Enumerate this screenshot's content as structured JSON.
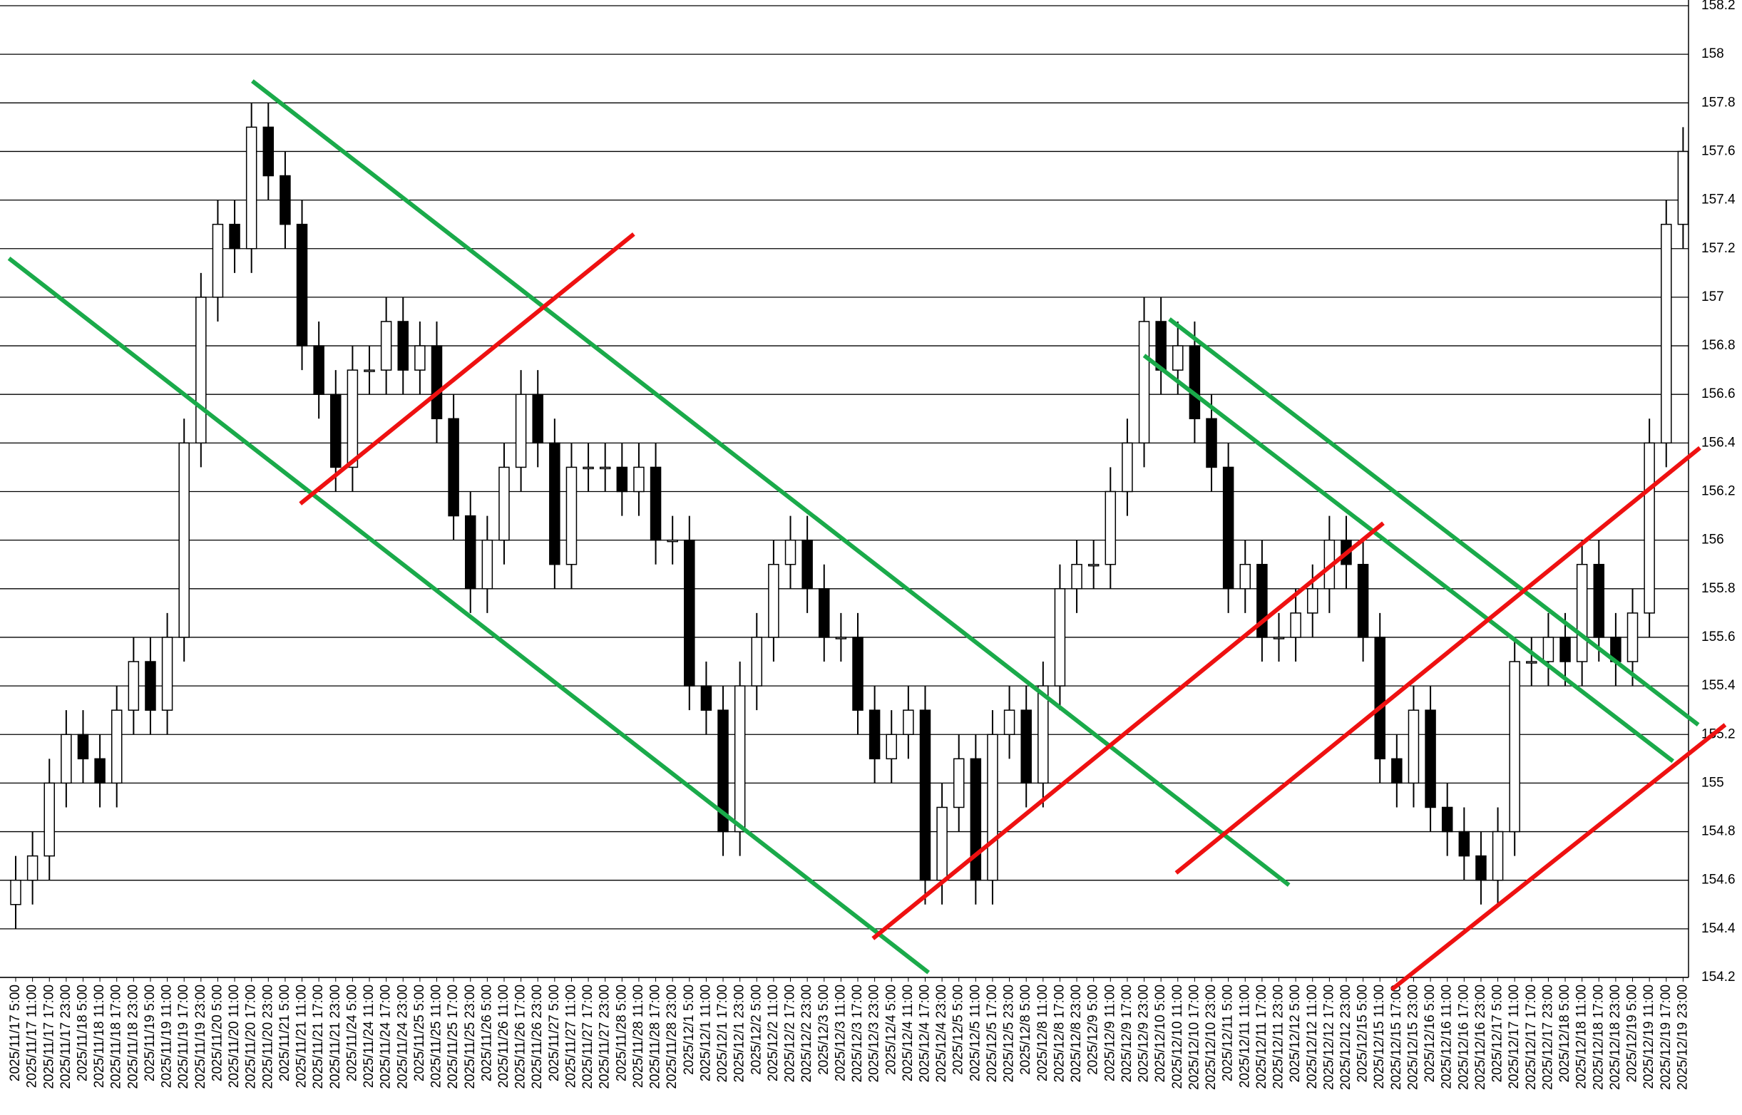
{
  "chart_data": {
    "type": "candlestick",
    "categories": [
      "2025/11/17 5:00",
      "2025/11/17 11:00",
      "2025/11/17 17:00",
      "2025/11/17 23:00",
      "2025/11/18 5:00",
      "2025/11/18 11:00",
      "2025/11/18 17:00",
      "2025/11/18 23:00",
      "2025/11/19 5:00",
      "2025/11/19 11:00",
      "2025/11/19 17:00",
      "2025/11/19 23:00",
      "2025/11/20 5:00",
      "2025/11/20 11:00",
      "2025/11/20 17:00",
      "2025/11/20 23:00",
      "2025/11/21 5:00",
      "2025/11/21 11:00",
      "2025/11/21 17:00",
      "2025/11/21 23:00",
      "2025/11/24 5:00",
      "2025/11/24 11:00",
      "2025/11/24 17:00",
      "2025/11/24 23:00",
      "2025/11/25 5:00",
      "2025/11/25 11:00",
      "2025/11/25 17:00",
      "2025/11/25 23:00",
      "2025/11/26 5:00",
      "2025/11/26 11:00",
      "2025/11/26 17:00",
      "2025/11/26 23:00",
      "2025/11/27 5:00",
      "2025/11/27 11:00",
      "2025/11/27 17:00",
      "2025/11/27 23:00",
      "2025/11/28 5:00",
      "2025/11/28 11:00",
      "2025/11/28 17:00",
      "2025/11/28 23:00",
      "2025/12/1 5:00",
      "2025/12/1 11:00",
      "2025/12/1 17:00",
      "2025/12/1 23:00",
      "2025/12/2 5:00",
      "2025/12/2 11:00",
      "2025/12/2 17:00",
      "2025/12/2 23:00",
      "2025/12/3 5:00",
      "2025/12/3 11:00",
      "2025/12/3 17:00",
      "2025/12/3 23:00",
      "2025/12/4 5:00",
      "2025/12/4 11:00",
      "2025/12/4 17:00",
      "2025/12/4 23:00",
      "2025/12/5 5:00",
      "2025/12/5 11:00",
      "2025/12/5 17:00",
      "2025/12/5 23:00",
      "2025/12/8 5:00",
      "2025/12/8 11:00",
      "2025/12/8 17:00",
      "2025/12/8 23:00",
      "2025/12/9 5:00",
      "2025/12/9 11:00",
      "2025/12/9 17:00",
      "2025/12/9 23:00",
      "2025/12/10 5:00",
      "2025/12/10 11:00",
      "2025/12/10 17:00",
      "2025/12/10 23:00",
      "2025/12/11 5:00",
      "2025/12/11 11:00",
      "2025/12/11 17:00",
      "2025/12/11 23:00",
      "2025/12/12 5:00",
      "2025/12/12 11:00",
      "2025/12/12 17:00",
      "2025/12/12 23:00",
      "2025/12/15 5:00",
      "2025/12/15 11:00",
      "2025/12/15 17:00",
      "2025/12/15 23:00",
      "2025/12/16 5:00",
      "2025/12/16 11:00",
      "2025/12/16 17:00",
      "2025/12/16 23:00",
      "2025/12/17 5:00",
      "2025/12/17 11:00",
      "2025/12/17 17:00",
      "2025/12/17 23:00",
      "2025/12/18 5:00",
      "2025/12/18 11:00",
      "2025/12/18 17:00",
      "2025/12/18 23:00",
      "2025/12/19 5:00",
      "2025/12/19 11:00",
      "2025/12/19 17:00",
      "2025/12/19 23:00"
    ],
    "open": [
      154.5,
      154.6,
      154.7,
      155.0,
      155.2,
      155.1,
      155.0,
      155.3,
      155.5,
      155.3,
      155.6,
      156.4,
      157.0,
      157.3,
      157.2,
      157.7,
      157.5,
      157.3,
      156.8,
      156.6,
      156.3,
      156.7,
      156.7,
      156.9,
      156.7,
      156.8,
      156.5,
      156.1,
      155.8,
      156.0,
      156.3,
      156.6,
      156.4,
      155.9,
      156.3,
      156.3,
      156.3,
      156.2,
      156.3,
      156.0,
      156.0,
      155.4,
      155.3,
      154.8,
      155.4,
      155.6,
      155.9,
      156.0,
      155.8,
      155.6,
      155.6,
      155.3,
      155.1,
      155.2,
      155.3,
      154.6,
      154.9,
      155.1,
      154.6,
      155.2,
      155.3,
      155.0,
      155.4,
      155.8,
      155.9,
      155.9,
      156.2,
      156.4,
      156.9,
      156.7,
      156.8,
      156.5,
      156.3,
      155.8,
      155.9,
      155.6,
      155.6,
      155.7,
      155.8,
      156.0,
      155.9,
      155.6,
      155.1,
      155.0,
      155.3,
      154.9,
      154.8,
      154.7,
      154.6,
      154.8,
      155.5,
      155.5,
      155.6,
      155.5,
      155.9,
      155.6,
      155.5,
      155.7,
      156.4,
      157.3
    ],
    "high": [
      154.7,
      154.8,
      155.1,
      155.3,
      155.3,
      155.2,
      155.4,
      155.6,
      155.6,
      155.7,
      156.5,
      157.1,
      157.4,
      157.4,
      157.8,
      157.8,
      157.6,
      157.4,
      156.9,
      156.7,
      156.8,
      156.8,
      157.0,
      157.0,
      156.9,
      156.9,
      156.6,
      156.2,
      156.1,
      156.4,
      156.7,
      156.7,
      156.5,
      156.4,
      156.4,
      156.4,
      156.4,
      156.4,
      156.4,
      156.1,
      156.1,
      155.5,
      155.4,
      155.5,
      155.7,
      156.0,
      156.1,
      156.1,
      155.9,
      155.7,
      155.7,
      155.4,
      155.3,
      155.4,
      155.4,
      155.0,
      155.2,
      155.2,
      155.3,
      155.4,
      155.4,
      155.5,
      155.9,
      156.0,
      156.0,
      156.3,
      156.5,
      157.0,
      157.0,
      156.9,
      156.9,
      156.6,
      156.4,
      156.0,
      156.0,
      155.7,
      155.8,
      155.9,
      156.1,
      156.1,
      156.0,
      155.7,
      155.2,
      155.4,
      155.4,
      155.0,
      154.9,
      154.8,
      154.9,
      155.6,
      155.6,
      155.7,
      155.7,
      156.0,
      156.0,
      155.7,
      155.8,
      156.5,
      157.4,
      157.7
    ],
    "low": [
      154.4,
      154.5,
      154.6,
      154.9,
      155.0,
      154.9,
      154.9,
      155.2,
      155.2,
      155.2,
      155.5,
      156.3,
      156.9,
      157.1,
      157.1,
      157.4,
      157.2,
      156.7,
      156.5,
      156.2,
      156.2,
      156.6,
      156.6,
      156.6,
      156.6,
      156.4,
      156.0,
      155.7,
      155.7,
      155.9,
      156.2,
      156.3,
      155.8,
      155.8,
      156.2,
      156.2,
      156.1,
      156.1,
      155.9,
      155.9,
      155.3,
      155.2,
      154.7,
      154.7,
      155.3,
      155.5,
      155.8,
      155.7,
      155.5,
      155.5,
      155.2,
      155.0,
      155.0,
      155.1,
      154.5,
      154.5,
      154.8,
      154.5,
      154.5,
      155.1,
      154.9,
      154.9,
      155.3,
      155.7,
      155.8,
      155.8,
      156.1,
      156.3,
      156.6,
      156.6,
      156.4,
      156.2,
      155.7,
      155.7,
      155.5,
      155.5,
      155.5,
      155.6,
      155.7,
      155.8,
      155.5,
      155.0,
      154.9,
      154.9,
      154.8,
      154.7,
      154.6,
      154.5,
      154.5,
      154.7,
      155.4,
      155.4,
      155.4,
      155.4,
      155.5,
      155.4,
      155.4,
      155.6,
      156.3,
      157.2
    ],
    "close": [
      154.6,
      154.7,
      155.0,
      155.2,
      155.1,
      155.0,
      155.3,
      155.5,
      155.3,
      155.6,
      156.4,
      157.0,
      157.3,
      157.2,
      157.7,
      157.5,
      157.3,
      156.8,
      156.6,
      156.3,
      156.7,
      156.7,
      156.9,
      156.7,
      156.8,
      156.5,
      156.1,
      155.8,
      156.0,
      156.3,
      156.6,
      156.4,
      155.9,
      156.3,
      156.3,
      156.3,
      156.2,
      156.3,
      156.0,
      156.0,
      155.4,
      155.3,
      154.8,
      155.4,
      155.6,
      155.9,
      156.0,
      155.8,
      155.6,
      155.6,
      155.3,
      155.1,
      155.2,
      155.3,
      154.6,
      154.9,
      155.1,
      154.6,
      155.2,
      155.3,
      155.0,
      155.4,
      155.8,
      155.9,
      155.9,
      156.2,
      156.4,
      156.9,
      156.7,
      156.8,
      156.5,
      156.3,
      155.8,
      155.9,
      155.6,
      155.6,
      155.7,
      155.8,
      156.0,
      155.9,
      155.6,
      155.1,
      155.0,
      155.3,
      154.9,
      154.8,
      154.7,
      154.6,
      154.8,
      155.5,
      155.5,
      155.6,
      155.5,
      155.9,
      155.6,
      155.5,
      155.7,
      156.4,
      157.3,
      157.6
    ],
    "ylim": [
      154.2,
      158.2
    ],
    "yticks": [
      154.2,
      154.4,
      154.6,
      154.8,
      155,
      155.2,
      155.4,
      155.6,
      155.8,
      156,
      156.2,
      156.4,
      156.6,
      156.8,
      157,
      157.2,
      157.4,
      157.6,
      157.8,
      158,
      158.2
    ],
    "grid": true,
    "trendlines": [
      {
        "color": "#1aaa4a",
        "x": [
          -0.4,
          54.2
        ],
        "y": [
          157.16,
          154.22
        ]
      },
      {
        "color": "#1aaa4a",
        "x": [
          14.05,
          75.6
        ],
        "y": [
          157.89,
          154.58
        ]
      },
      {
        "color": "#1aaa4a",
        "x": [
          67.0,
          98.4
        ],
        "y": [
          156.76,
          155.09
        ]
      },
      {
        "color": "#1aaa4a",
        "x": [
          68.5,
          99.9
        ],
        "y": [
          156.91,
          155.24
        ]
      },
      {
        "color": "#ee1111",
        "x": [
          16.9,
          36.7
        ],
        "y": [
          156.15,
          157.26
        ]
      },
      {
        "color": "#ee1111",
        "x": [
          50.9,
          81.2
        ],
        "y": [
          154.36,
          156.07
        ]
      },
      {
        "color": "#ee1111",
        "x": [
          68.9,
          100.0
        ],
        "y": [
          154.63,
          156.38
        ]
      },
      {
        "color": "#ee1111",
        "x": [
          81.7,
          101.5
        ],
        "y": [
          154.15,
          155.24
        ]
      }
    ]
  }
}
